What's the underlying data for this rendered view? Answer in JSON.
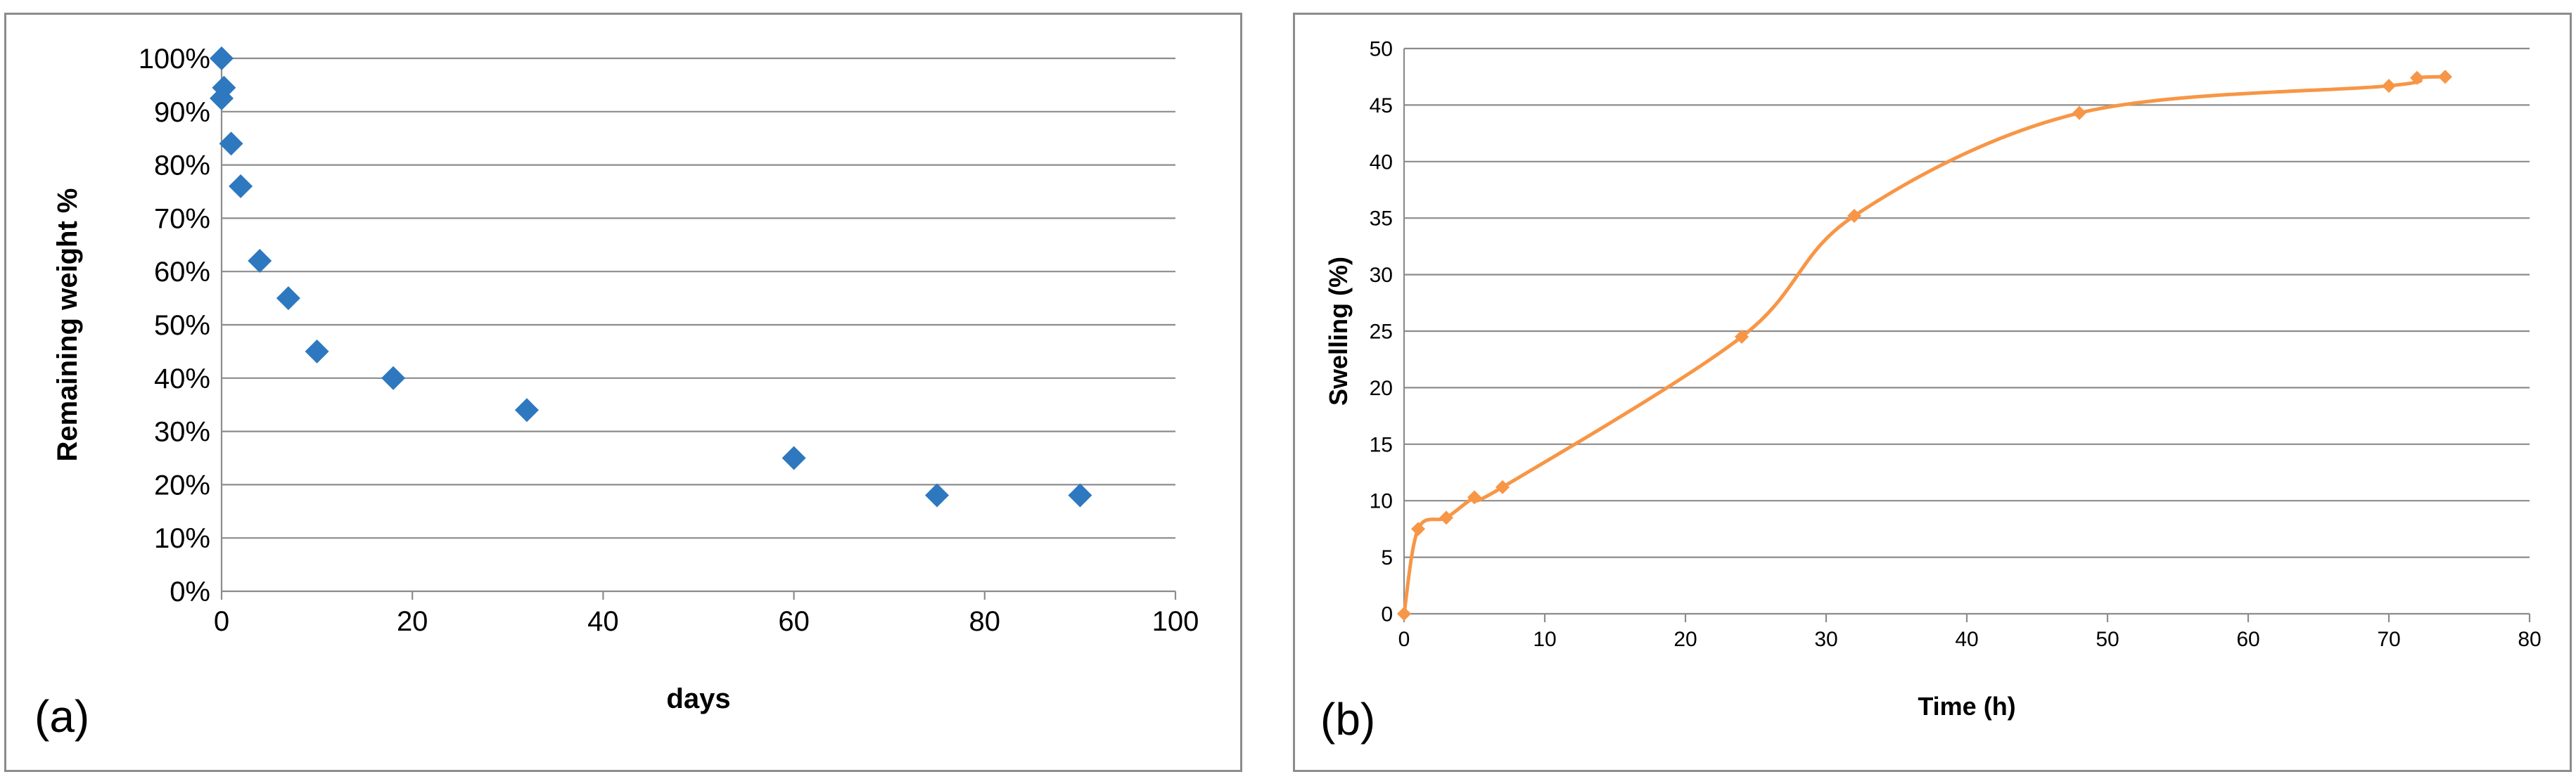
{
  "chart_data": [
    {
      "type": "scatter",
      "panel_label": "(a)",
      "title": "",
      "xlabel": "days",
      "ylabel": "Remaining weight %",
      "xlim": [
        0,
        100
      ],
      "ylim": [
        0,
        100
      ],
      "xticks": [
        "0",
        "20",
        "40",
        "60",
        "80",
        "100"
      ],
      "yticks": [
        "0%",
        "10%",
        "20%",
        "30%",
        "40%",
        "50%",
        "60%",
        "70%",
        "80%",
        "90%",
        "100%"
      ],
      "grid": "horizontal",
      "marker": "diamond",
      "color": "#2e78bf",
      "series": [
        {
          "name": "Remaining weight",
          "points": [
            {
              "x": 0,
              "y": 100
            },
            {
              "x": 0.25,
              "y": 94.5
            },
            {
              "x": 0,
              "y": 92.5
            },
            {
              "x": 1,
              "y": 84
            },
            {
              "x": 2,
              "y": 76
            },
            {
              "x": 4,
              "y": 62
            },
            {
              "x": 7,
              "y": 55
            },
            {
              "x": 10,
              "y": 45
            },
            {
              "x": 18,
              "y": 40
            },
            {
              "x": 32,
              "y": 34
            },
            {
              "x": 60,
              "y": 25
            },
            {
              "x": 75,
              "y": 18
            },
            {
              "x": 90,
              "y": 18
            }
          ]
        }
      ]
    },
    {
      "type": "line",
      "panel_label": "(b)",
      "title": "",
      "xlabel": "Time (h)",
      "ylabel": "Swelling (%)",
      "xlim": [
        0,
        80
      ],
      "ylim": [
        0,
        50
      ],
      "xticks": [
        "0",
        "10",
        "20",
        "30",
        "40",
        "50",
        "60",
        "70",
        "80"
      ],
      "yticks": [
        "0",
        "5",
        "10",
        "15",
        "20",
        "25",
        "30",
        "35",
        "40",
        "45",
        "50"
      ],
      "grid": "horizontal",
      "marker": "diamond",
      "color": "#f79646",
      "smooth": true,
      "series": [
        {
          "name": "Swelling",
          "points": [
            {
              "x": 0,
              "y": 0
            },
            {
              "x": 1,
              "y": 7.5
            },
            {
              "x": 3,
              "y": 8.5
            },
            {
              "x": 5,
              "y": 10.3
            },
            {
              "x": 7,
              "y": 11.2
            },
            {
              "x": 24,
              "y": 24.5
            },
            {
              "x": 32,
              "y": 35.2
            },
            {
              "x": 48,
              "y": 44.3
            },
            {
              "x": 70,
              "y": 46.7
            },
            {
              "x": 72,
              "y": 47.4
            },
            {
              "x": 74,
              "y": 47.5
            }
          ]
        }
      ]
    }
  ]
}
